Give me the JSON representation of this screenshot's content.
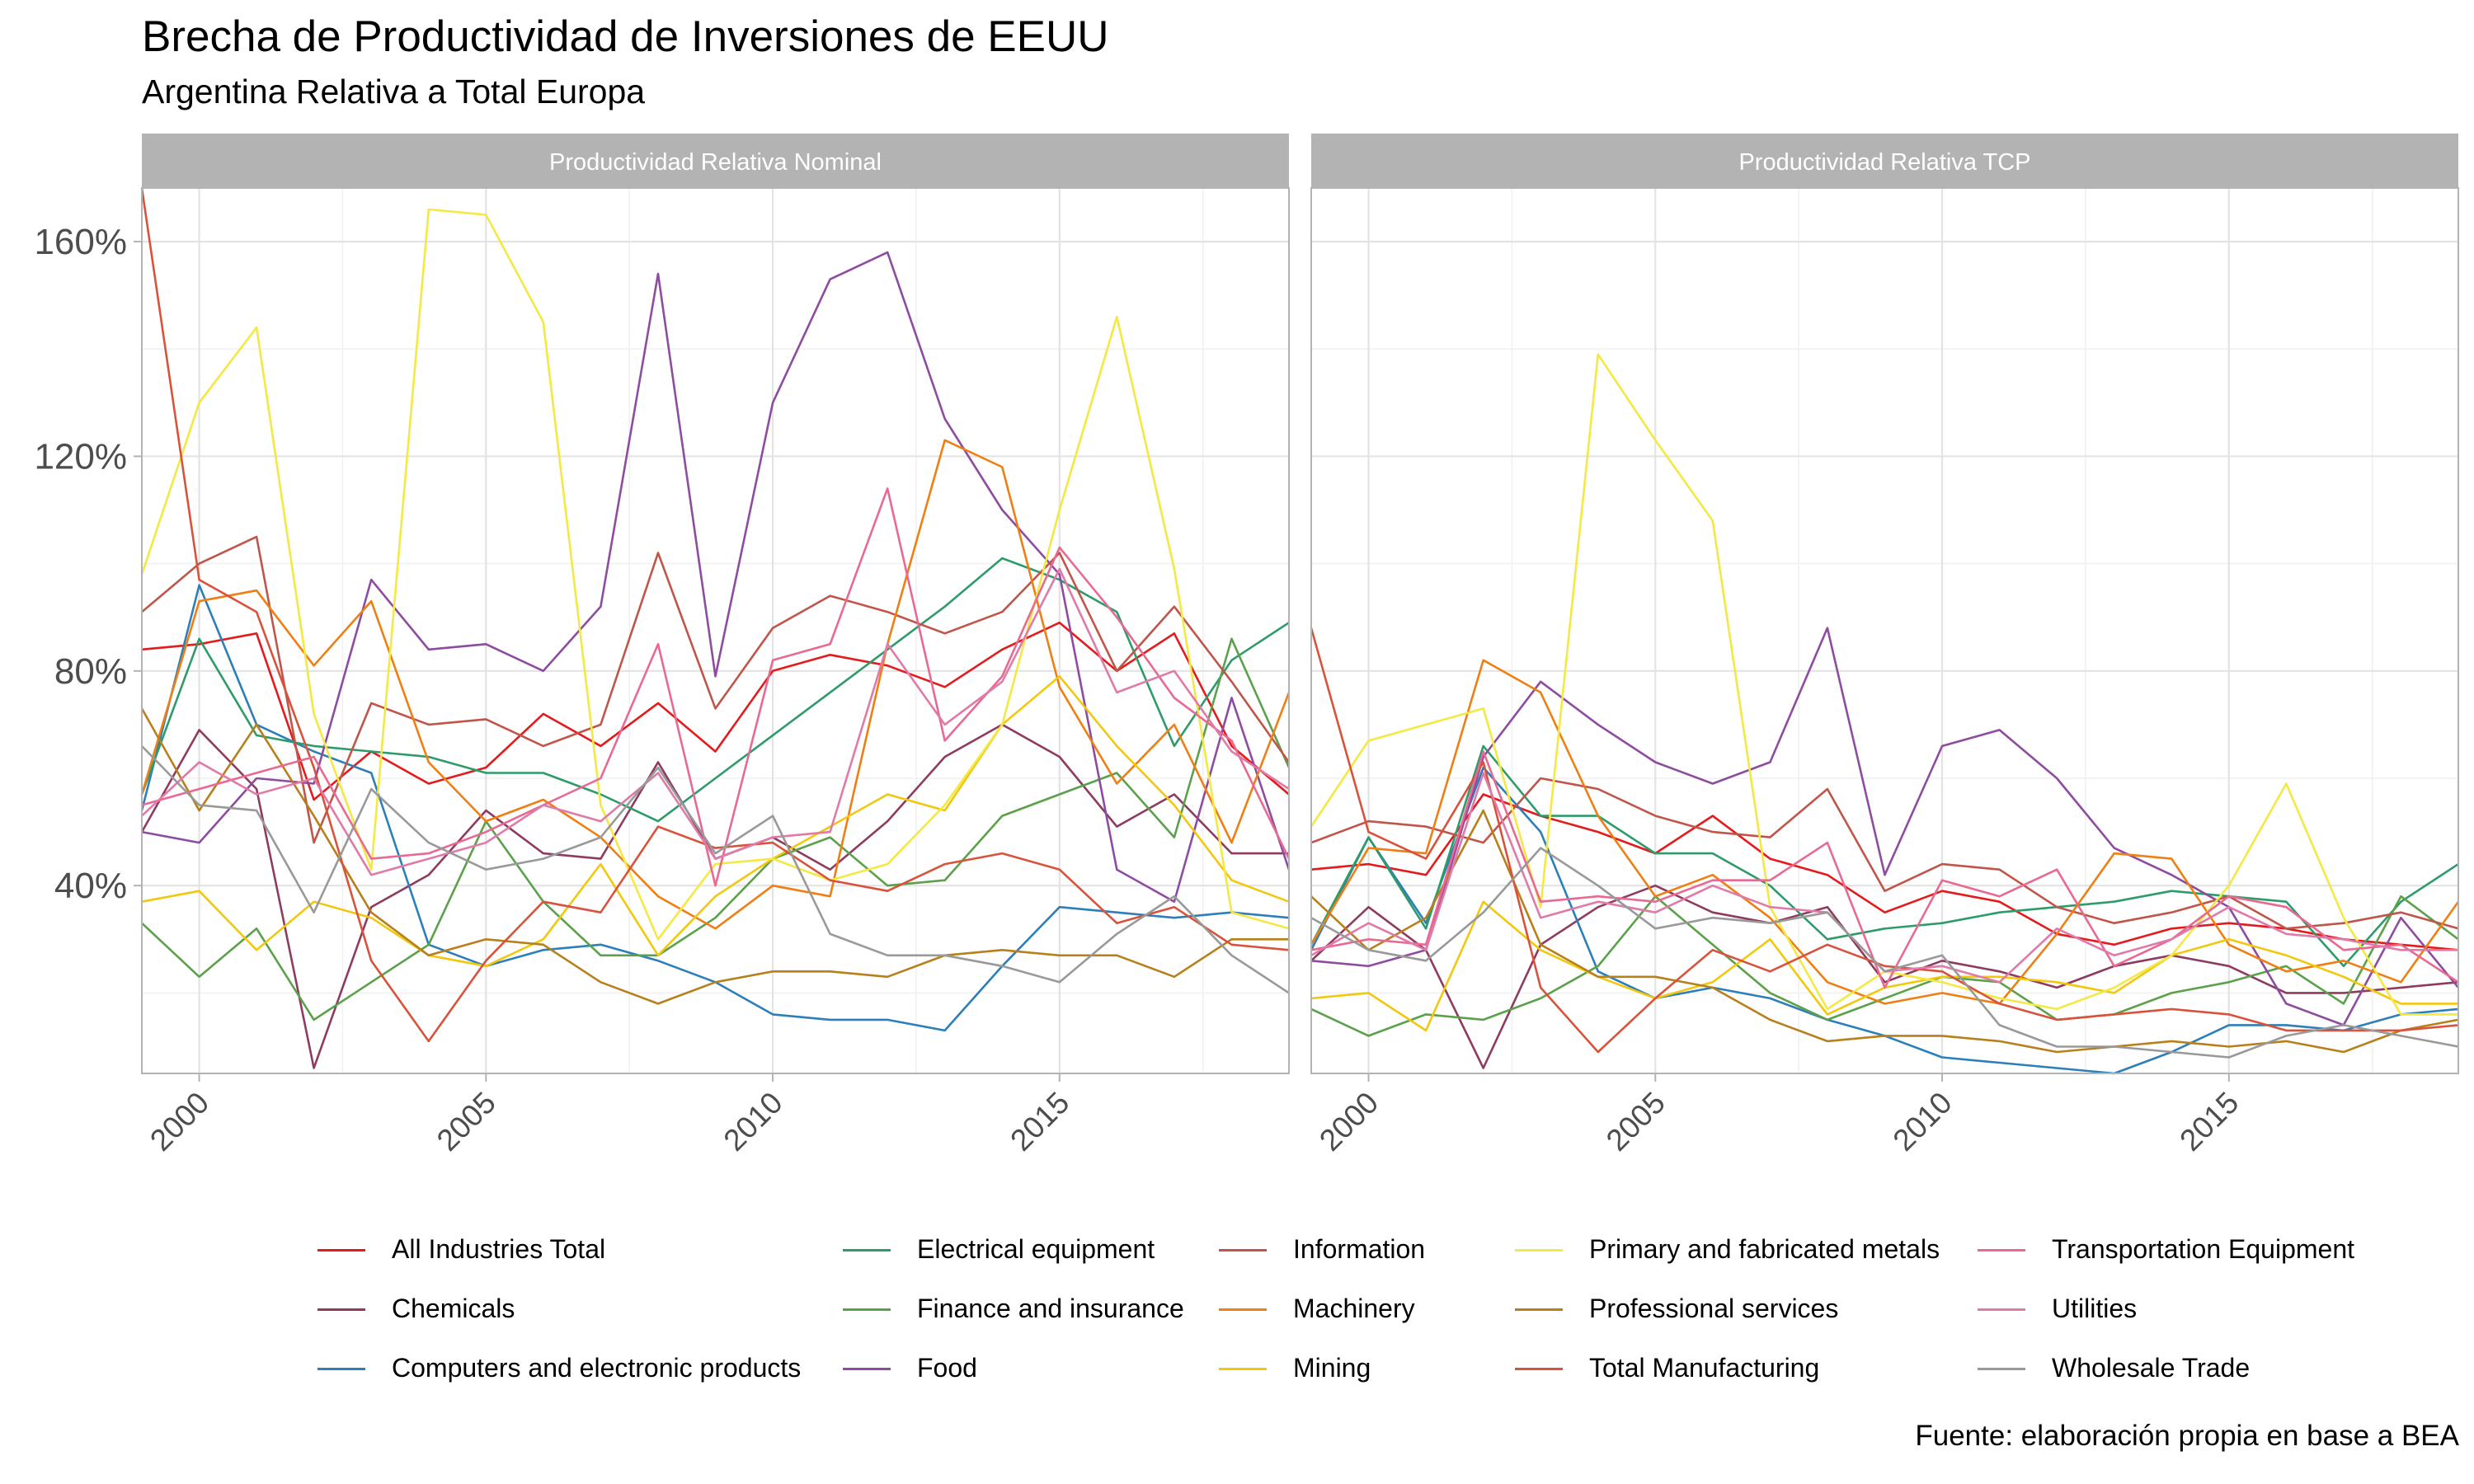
{
  "title": "Brecha de Productividad de Inversiones de EEUU",
  "subtitle": "Argentina Relativa a Total Europa",
  "caption": "Fuente: elaboración propia en base a BEA",
  "chart_data": {
    "type": "line",
    "facets": [
      "Productividad Relativa Nominal",
      "Productividad Relativa TCP"
    ],
    "x": [
      1999,
      2000,
      2001,
      2002,
      2003,
      2004,
      2005,
      2006,
      2007,
      2008,
      2009,
      2010,
      2011,
      2012,
      2013,
      2014,
      2015,
      2016,
      2017,
      2018,
      2019
    ],
    "xlim": [
      1999,
      2019
    ],
    "x_ticks": [
      2000,
      2005,
      2010,
      2015
    ],
    "x_tick_labels": [
      "2000",
      "2005",
      "2010",
      "2015"
    ],
    "ylim": [
      0.05,
      1.7
    ],
    "y_ticks": [
      0.4,
      0.8,
      1.2,
      1.6
    ],
    "y_tick_labels": [
      "40%",
      "80%",
      "120%",
      "160%"
    ],
    "grid": true,
    "legend_position": "bottom",
    "series": [
      {
        "name": "All Industries Total",
        "color": "#E41A1C",
        "nominal": [
          0.84,
          0.85,
          0.87,
          0.56,
          0.65,
          0.59,
          0.62,
          0.72,
          0.66,
          0.74,
          0.65,
          0.8,
          0.83,
          0.81,
          0.77,
          0.84,
          0.89,
          0.8,
          0.87,
          0.66,
          0.57
        ],
        "tcp": [
          0.43,
          0.44,
          0.42,
          0.57,
          0.53,
          0.5,
          0.46,
          0.53,
          0.45,
          0.42,
          0.35,
          0.39,
          0.37,
          0.31,
          0.29,
          0.32,
          0.33,
          0.32,
          0.3,
          0.29,
          0.28
        ]
      },
      {
        "name": "Chemicals",
        "color": "#8E3B5F",
        "nominal": [
          0.5,
          0.69,
          0.58,
          0.06,
          0.36,
          0.42,
          0.54,
          0.46,
          0.45,
          0.63,
          0.45,
          0.49,
          0.43,
          0.52,
          0.64,
          0.7,
          0.64,
          0.51,
          0.57,
          0.46,
          0.46
        ],
        "tcp": [
          0.26,
          0.36,
          0.28,
          0.06,
          0.29,
          0.36,
          0.4,
          0.35,
          0.33,
          0.36,
          0.22,
          0.26,
          0.24,
          0.21,
          0.25,
          0.27,
          0.25,
          0.2,
          0.2,
          0.21,
          0.22
        ]
      },
      {
        "name": "Computers and electronic products",
        "color": "#2C7FB8",
        "nominal": [
          0.54,
          0.96,
          0.7,
          0.65,
          0.61,
          0.29,
          0.25,
          0.28,
          0.29,
          0.26,
          0.22,
          0.16,
          0.15,
          0.15,
          0.13,
          0.25,
          0.36,
          0.35,
          0.34,
          0.35,
          0.34
        ],
        "tcp": [
          0.28,
          0.49,
          0.33,
          0.62,
          0.5,
          0.24,
          0.19,
          0.21,
          0.19,
          0.15,
          0.12,
          0.08,
          0.07,
          0.06,
          0.05,
          0.09,
          0.14,
          0.14,
          0.13,
          0.16,
          0.17
        ]
      },
      {
        "name": "Electrical equipment",
        "color": "#2E9B6A",
        "nominal": [
          0.57,
          0.86,
          0.68,
          0.66,
          0.65,
          0.64,
          0.61,
          0.61,
          0.57,
          0.52,
          0.6,
          0.68,
          0.76,
          0.84,
          0.92,
          1.01,
          0.97,
          0.91,
          0.66,
          0.82,
          0.89
        ],
        "tcp": [
          0.29,
          0.49,
          0.32,
          0.66,
          0.53,
          0.53,
          0.46,
          0.46,
          0.4,
          0.3,
          0.32,
          0.33,
          0.35,
          0.36,
          0.37,
          0.39,
          0.38,
          0.37,
          0.25,
          0.37,
          0.44
        ]
      },
      {
        "name": "Finance and insurance",
        "color": "#5BA04B",
        "nominal": [
          0.33,
          0.23,
          0.32,
          0.15,
          0.22,
          0.29,
          0.52,
          0.37,
          0.27,
          0.27,
          0.34,
          0.45,
          0.49,
          0.4,
          0.41,
          0.53,
          0.57,
          0.61,
          0.49,
          0.86,
          0.62
        ],
        "tcp": [
          0.17,
          0.12,
          0.16,
          0.15,
          0.19,
          0.25,
          0.38,
          0.29,
          0.2,
          0.15,
          0.19,
          0.23,
          0.22,
          0.15,
          0.16,
          0.2,
          0.22,
          0.25,
          0.18,
          0.38,
          0.3
        ]
      },
      {
        "name": "Food",
        "color": "#8E4CA0",
        "nominal": [
          0.5,
          0.48,
          0.6,
          0.59,
          0.97,
          0.84,
          0.85,
          0.8,
          0.92,
          1.54,
          0.79,
          1.3,
          1.53,
          1.58,
          1.27,
          1.1,
          0.98,
          0.43,
          0.37,
          0.75,
          0.43
        ],
        "tcp": [
          0.26,
          0.25,
          0.28,
          0.64,
          0.78,
          0.7,
          0.63,
          0.59,
          0.63,
          0.88,
          0.42,
          0.66,
          0.69,
          0.6,
          0.47,
          0.42,
          0.36,
          0.18,
          0.14,
          0.34,
          0.21
        ]
      },
      {
        "name": "Information",
        "color": "#C0554A",
        "nominal": [
          0.91,
          1.0,
          1.05,
          0.48,
          0.74,
          0.7,
          0.71,
          0.66,
          0.7,
          1.02,
          0.73,
          0.88,
          0.94,
          0.91,
          0.87,
          0.91,
          1.02,
          0.8,
          0.92,
          0.78,
          0.63
        ],
        "tcp": [
          0.48,
          0.52,
          0.51,
          0.48,
          0.6,
          0.58,
          0.53,
          0.5,
          0.49,
          0.58,
          0.39,
          0.44,
          0.43,
          0.36,
          0.33,
          0.35,
          0.38,
          0.32,
          0.33,
          0.35,
          0.32
        ]
      },
      {
        "name": "Machinery",
        "color": "#F07F13",
        "nominal": [
          0.57,
          0.93,
          0.95,
          0.81,
          0.93,
          0.63,
          0.52,
          0.56,
          0.49,
          0.38,
          0.32,
          0.4,
          0.38,
          0.85,
          1.23,
          1.18,
          0.77,
          0.59,
          0.7,
          0.48,
          0.76
        ],
        "tcp": [
          0.29,
          0.47,
          0.46,
          0.82,
          0.76,
          0.53,
          0.38,
          0.42,
          0.34,
          0.22,
          0.18,
          0.2,
          0.18,
          0.31,
          0.46,
          0.45,
          0.29,
          0.24,
          0.26,
          0.22,
          0.37
        ]
      },
      {
        "name": "Mining",
        "color": "#F2C80F",
        "nominal": [
          0.37,
          0.39,
          0.28,
          0.37,
          0.34,
          0.27,
          0.25,
          0.3,
          0.44,
          0.27,
          0.38,
          0.45,
          0.51,
          0.57,
          0.54,
          0.7,
          0.79,
          0.66,
          0.55,
          0.41,
          0.37
        ],
        "tcp": [
          0.19,
          0.2,
          0.13,
          0.37,
          0.28,
          0.23,
          0.19,
          0.22,
          0.3,
          0.16,
          0.21,
          0.23,
          0.23,
          0.22,
          0.2,
          0.27,
          0.3,
          0.27,
          0.23,
          0.18,
          0.18
        ]
      },
      {
        "name": "Primary and fabricated metals",
        "color": "#F4E842",
        "nominal": [
          0.98,
          1.3,
          1.44,
          0.72,
          0.43,
          1.66,
          1.65,
          1.45,
          0.55,
          0.3,
          0.44,
          0.45,
          0.41,
          0.44,
          0.55,
          0.7,
          1.1,
          1.46,
          0.99,
          0.35,
          0.32
        ],
        "tcp": [
          0.51,
          0.67,
          0.7,
          0.73,
          0.36,
          1.39,
          1.23,
          1.08,
          0.36,
          0.17,
          0.24,
          0.22,
          0.19,
          0.17,
          0.21,
          0.27,
          0.4,
          0.59,
          0.34,
          0.16,
          0.16
        ]
      },
      {
        "name": "Professional services",
        "color": "#B8801C",
        "nominal": [
          0.73,
          0.54,
          0.7,
          0.53,
          0.35,
          0.27,
          0.3,
          0.29,
          0.22,
          0.18,
          0.22,
          0.24,
          0.24,
          0.23,
          0.27,
          0.28,
          0.27,
          0.27,
          0.23,
          0.3,
          0.3
        ],
        "tcp": [
          0.38,
          0.28,
          0.34,
          0.54,
          0.29,
          0.23,
          0.23,
          0.21,
          0.15,
          0.11,
          0.12,
          0.12,
          0.11,
          0.09,
          0.1,
          0.11,
          0.1,
          0.11,
          0.09,
          0.13,
          0.15
        ]
      },
      {
        "name": "Total Manufacturing",
        "color": "#D9523B",
        "nominal": [
          1.7,
          0.97,
          0.91,
          0.62,
          0.26,
          0.11,
          0.26,
          0.37,
          0.35,
          0.51,
          0.47,
          0.48,
          0.41,
          0.39,
          0.44,
          0.46,
          0.43,
          0.33,
          0.36,
          0.29,
          0.28
        ],
        "tcp": [
          0.88,
          0.5,
          0.45,
          0.63,
          0.21,
          0.09,
          0.19,
          0.28,
          0.24,
          0.29,
          0.25,
          0.24,
          0.18,
          0.15,
          0.16,
          0.17,
          0.16,
          0.13,
          0.13,
          0.13,
          0.14
        ]
      },
      {
        "name": "Transportation Equipment",
        "color": "#E86A92",
        "nominal": [
          0.55,
          0.58,
          0.61,
          0.64,
          0.45,
          0.46,
          0.5,
          0.55,
          0.6,
          0.85,
          0.4,
          0.82,
          0.85,
          1.14,
          0.67,
          0.79,
          1.03,
          0.9,
          0.75,
          0.67,
          0.45
        ],
        "tcp": [
          0.28,
          0.3,
          0.29,
          0.65,
          0.37,
          0.38,
          0.37,
          0.41,
          0.41,
          0.48,
          0.21,
          0.41,
          0.38,
          0.43,
          0.25,
          0.3,
          0.38,
          0.36,
          0.28,
          0.29,
          0.22
        ]
      },
      {
        "name": "Utilities",
        "color": "#E07AA8",
        "nominal": [
          0.53,
          0.63,
          0.57,
          0.6,
          0.42,
          0.45,
          0.48,
          0.55,
          0.52,
          0.61,
          0.45,
          0.49,
          0.5,
          0.85,
          0.7,
          0.78,
          0.99,
          0.76,
          0.8,
          0.65,
          0.58
        ],
        "tcp": [
          0.27,
          0.33,
          0.28,
          0.61,
          0.34,
          0.37,
          0.35,
          0.4,
          0.36,
          0.35,
          0.24,
          0.25,
          0.22,
          0.32,
          0.27,
          0.3,
          0.36,
          0.31,
          0.3,
          0.28,
          0.28
        ]
      },
      {
        "name": "Wholesale Trade",
        "color": "#999999",
        "nominal": [
          0.66,
          0.55,
          0.54,
          0.35,
          0.58,
          0.48,
          0.43,
          0.45,
          0.49,
          0.62,
          0.46,
          0.53,
          0.31,
          0.27,
          0.27,
          0.25,
          0.22,
          0.31,
          0.38,
          0.27,
          0.2
        ],
        "tcp": [
          0.34,
          0.28,
          0.26,
          0.35,
          0.47,
          0.4,
          0.32,
          0.34,
          0.33,
          0.35,
          0.24,
          0.27,
          0.14,
          0.1,
          0.1,
          0.09,
          0.08,
          0.12,
          0.14,
          0.12,
          0.1
        ]
      }
    ]
  }
}
